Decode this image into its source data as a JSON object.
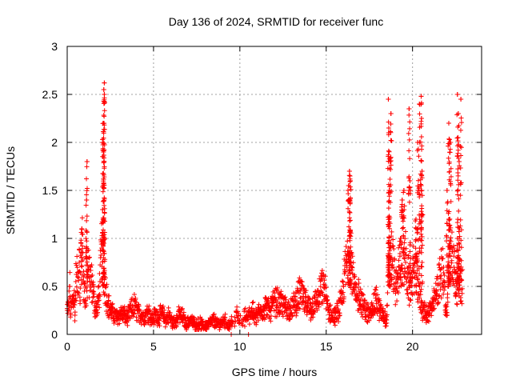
{
  "chart_data": {
    "type": "scatter",
    "title": "Day 136 of 2024, SRMTID for receiver func",
    "xlabel": "GPS time / hours",
    "ylabel": "SRMTID / TECUs",
    "xlim": [
      0,
      24
    ],
    "ylim": [
      0,
      3
    ],
    "xticks": [
      0,
      5,
      10,
      15,
      20
    ],
    "xtick_labels": [
      "0",
      "5",
      "10",
      "15",
      "20"
    ],
    "yticks": [
      0,
      0.5,
      1,
      1.5,
      2,
      2.5,
      3
    ],
    "ytick_labels": [
      "0",
      "0.5",
      "1",
      "1.5",
      "2",
      "2.5",
      "3"
    ],
    "grid": true,
    "marker": "+",
    "color": "#ff0000",
    "series": [
      {
        "name": "SRMTID",
        "x": [
          0.0,
          0.1,
          0.2,
          0.3,
          0.4,
          0.5,
          0.6,
          0.7,
          0.8,
          0.85,
          0.9,
          0.95,
          1.0,
          1.05,
          1.1,
          1.15,
          1.2,
          1.3,
          1.4,
          1.5,
          1.6,
          1.7,
          1.8,
          1.9,
          2.0,
          2.05,
          2.1,
          2.15,
          2.2,
          2.3,
          2.4,
          2.5,
          2.7,
          2.9,
          3.1,
          3.3,
          3.5,
          3.7,
          3.9,
          4.1,
          4.3,
          4.5,
          4.7,
          4.9,
          5.1,
          5.3,
          5.5,
          5.7,
          5.9,
          6.1,
          6.3,
          6.5,
          6.7,
          6.9,
          7.1,
          7.3,
          7.5,
          7.7,
          7.9,
          8.1,
          8.3,
          8.5,
          8.7,
          8.9,
          9.1,
          9.3,
          9.5,
          9.7,
          9.9,
          10.1,
          10.3,
          10.5,
          10.7,
          10.9,
          11.1,
          11.3,
          11.5,
          11.7,
          11.9,
          12.1,
          12.3,
          12.5,
          12.7,
          12.9,
          13.1,
          13.3,
          13.5,
          13.7,
          13.9,
          14.1,
          14.3,
          14.5,
          14.7,
          14.9,
          15.1,
          15.3,
          15.5,
          15.7,
          15.9,
          16.0,
          16.1,
          16.2,
          16.3,
          16.35,
          16.4,
          16.5,
          16.6,
          16.7,
          16.8,
          16.9,
          17.1,
          17.3,
          17.5,
          17.7,
          17.9,
          18.1,
          18.3,
          18.5,
          18.6,
          18.65,
          18.7,
          18.75,
          18.8,
          18.9,
          19.0,
          19.1,
          19.2,
          19.3,
          19.4,
          19.5,
          19.6,
          19.7,
          19.8,
          19.9,
          20.0,
          20.1,
          20.2,
          20.3,
          20.4,
          20.5,
          20.6,
          20.8,
          21.0,
          21.2,
          21.4,
          21.6,
          21.8,
          21.9,
          22.0,
          22.05,
          22.1,
          22.2,
          22.3,
          22.4,
          22.5,
          22.6,
          22.7,
          22.8,
          0.15,
          0.45,
          0.75,
          1.05,
          1.1,
          1.12,
          1.15,
          2.05,
          2.1,
          2.12,
          2.15,
          16.3,
          16.35,
          16.38,
          18.6,
          18.62,
          18.65,
          19.5,
          19.55,
          19.8,
          19.85,
          20.5,
          20.52,
          20.55,
          22.0,
          22.1,
          22.15,
          22.6,
          22.65,
          22.7
        ],
        "y": [
          0.25,
          0.3,
          0.22,
          0.35,
          0.4,
          0.55,
          0.6,
          0.75,
          0.95,
          1.1,
          0.85,
          0.6,
          0.45,
          0.35,
          0.3,
          0.5,
          0.65,
          0.6,
          0.55,
          0.45,
          0.3,
          0.25,
          0.35,
          0.55,
          0.9,
          1.3,
          1.9,
          2.5,
          0.5,
          0.4,
          0.3,
          0.25,
          0.2,
          0.18,
          0.22,
          0.2,
          0.17,
          0.25,
          0.3,
          0.22,
          0.2,
          0.18,
          0.25,
          0.15,
          0.2,
          0.18,
          0.22,
          0.15,
          0.2,
          0.12,
          0.15,
          0.2,
          0.18,
          0.1,
          0.15,
          0.12,
          0.1,
          0.12,
          0.08,
          0.1,
          0.12,
          0.15,
          0.1,
          0.12,
          0.15,
          0.1,
          0.12,
          0.18,
          0.2,
          0.15,
          0.18,
          0.2,
          0.25,
          0.18,
          0.22,
          0.25,
          0.3,
          0.25,
          0.3,
          0.35,
          0.32,
          0.3,
          0.28,
          0.25,
          0.3,
          0.35,
          0.45,
          0.35,
          0.3,
          0.25,
          0.32,
          0.35,
          0.45,
          0.5,
          0.25,
          0.2,
          0.18,
          0.25,
          0.35,
          0.5,
          0.65,
          0.75,
          0.9,
          1.4,
          1.6,
          0.7,
          0.5,
          0.4,
          0.35,
          0.45,
          0.3,
          0.25,
          0.2,
          0.3,
          0.35,
          0.25,
          0.2,
          0.15,
          0.6,
          1.2,
          1.8,
          2.3,
          0.8,
          0.7,
          0.5,
          0.45,
          0.7,
          1.0,
          1.4,
          0.9,
          0.75,
          0.6,
          0.5,
          0.55,
          0.6,
          0.7,
          1.2,
          2.0,
          2.4,
          0.35,
          0.25,
          0.2,
          0.25,
          0.3,
          0.45,
          0.6,
          0.7,
          0.3,
          0.2,
          0.5,
          1.2,
          2.0,
          0.9,
          0.7,
          0.55,
          1.0,
          1.8,
          2.45,
          0.5,
          0.2,
          0.35,
          0.5,
          0.9,
          1.4,
          1.8,
          2.03,
          2.2,
          2.55,
          2.62,
          1.55,
          1.7,
          1.65,
          2.45,
          2.1,
          1.5,
          1.5,
          0.85,
          2.35,
          1.6,
          2.48,
          2.25,
          1.7,
          1.5,
          2.2,
          2.0,
          2.5,
          2.3,
          1.0
        ],
        "sparse_near_zero": [
          9.5,
          10.5
        ]
      }
    ]
  },
  "noise": {
    "base_envelope_description": "dense scatter of + markers"
  }
}
